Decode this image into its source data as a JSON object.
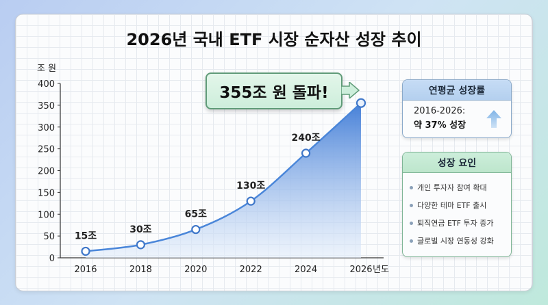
{
  "chart_data": {
    "type": "area",
    "title": "2026년 국내 ETF 시장 순자산 성장 추이",
    "ylabel": "조 원",
    "xlabel": "년도",
    "x": [
      "2016",
      "2018",
      "2020",
      "2022",
      "2024",
      "2026"
    ],
    "values": [
      15,
      30,
      65,
      130,
      240,
      355
    ],
    "data_labels": [
      "15조",
      "30조",
      "65조",
      "130조",
      "240조",
      ""
    ],
    "yticks": [
      0,
      50,
      100,
      150,
      200,
      250,
      300,
      350,
      400
    ],
    "ylim": [
      0,
      400
    ],
    "grid": true,
    "annotation": "355조 원 돌파!"
  },
  "colors": {
    "area_top": "#3d7ad6",
    "area_bottom": "#e4eefb",
    "line": "#4a86d9",
    "marker_stroke": "#3f77c9"
  },
  "growth_panel": {
    "title": "연평균 성장률",
    "period": "2016-2026:",
    "rate": "약 37% 성장",
    "icon": "up-arrow-icon"
  },
  "factors_panel": {
    "title": "성장 요인",
    "items": [
      "개인 투자자 참여 확대",
      "다양한 테마 ETF 출시",
      "퇴직연금 ETF 투자 증가",
      "글로벌 시장 연동성 강화"
    ]
  }
}
